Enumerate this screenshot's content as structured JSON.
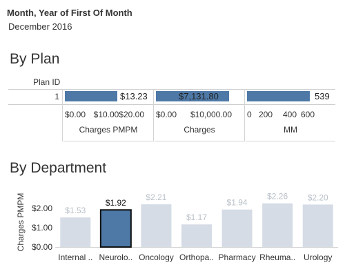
{
  "filter": {
    "title": "Month, Year of First Of Month",
    "value": "December 2016"
  },
  "plan_section": {
    "title": "By Plan",
    "row_header": "Plan ID",
    "row_id": "1",
    "panels": [
      {
        "name": "Charges PMPM",
        "value": 13.23,
        "value_label": "$13.23",
        "max": 20,
        "ticks": [
          "$0.00",
          "$10.00",
          "$20.00"
        ]
      },
      {
        "name": "Charges",
        "value": 7131.8,
        "value_label": "$7,131.80",
        "max": 10000,
        "ticks": [
          "$0.00",
          "$10,000.00"
        ]
      },
      {
        "name": "MM",
        "value": 539,
        "value_label": "539",
        "max": 600,
        "ticks": [
          "0",
          "200",
          "400",
          "600"
        ]
      }
    ]
  },
  "dept_section": {
    "title": "By Department"
  },
  "colors": {
    "bar_primary": "#4e79a7",
    "bar_muted": "#d5dce5",
    "label_muted": "#b9c0c8"
  },
  "chart_data": [
    {
      "type": "bar",
      "orientation": "horizontal",
      "categories": [
        "1"
      ],
      "series": [
        {
          "name": "Charges PMPM",
          "values": [
            13.23
          ]
        },
        {
          "name": "Charges",
          "values": [
            7131.8
          ]
        },
        {
          "name": "MM",
          "values": [
            539
          ]
        }
      ],
      "title": "By Plan",
      "ylabel": "Plan ID"
    },
    {
      "type": "bar",
      "title": "By Department",
      "categories": [
        "Internal ..",
        "Neurolo..",
        "Oncology",
        "Orthopa..",
        "Pharmacy",
        "Rheuma..",
        "Urology"
      ],
      "values": [
        1.53,
        1.92,
        2.21,
        1.17,
        1.94,
        2.26,
        2.2
      ],
      "value_labels": [
        "$1.53",
        "$1.92",
        "$2.21",
        "$1.17",
        "$1.94",
        "$2.26",
        "$2.20"
      ],
      "highlighted_index": 1,
      "ylabel": "Charges PMPM",
      "yticks": [
        "$0.00",
        "$1.00",
        "$2.00"
      ],
      "ylim": [
        0,
        2.5
      ]
    }
  ]
}
